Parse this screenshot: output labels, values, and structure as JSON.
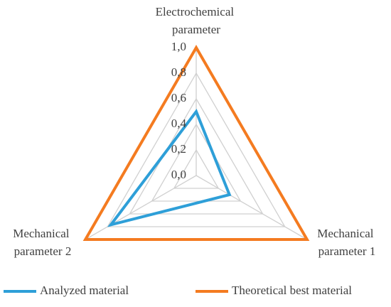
{
  "chart_data": {
    "type": "radar",
    "categories": [
      "Electrochemical parameter",
      "Mechanical parameter 1",
      "Mechanical parameter 2"
    ],
    "rlim": [
      0,
      1
    ],
    "rticks": [
      {
        "value": 0,
        "label": "0,0"
      },
      {
        "value": 0.2,
        "label": "0,2"
      },
      {
        "value": 0.4,
        "label": "0,4"
      },
      {
        "value": 0.6,
        "label": "0,6"
      },
      {
        "value": 0.8,
        "label": "0,8"
      },
      {
        "value": 1,
        "label": "1,0"
      }
    ],
    "grid": true,
    "series": [
      {
        "name": "Analyzed material",
        "color": "#2e9fd8",
        "values": [
          0.5,
          0.3,
          0.77
        ]
      },
      {
        "name": "Theoretical best material",
        "color": "#f47b20",
        "values": [
          1,
          1,
          1
        ]
      }
    ]
  }
}
